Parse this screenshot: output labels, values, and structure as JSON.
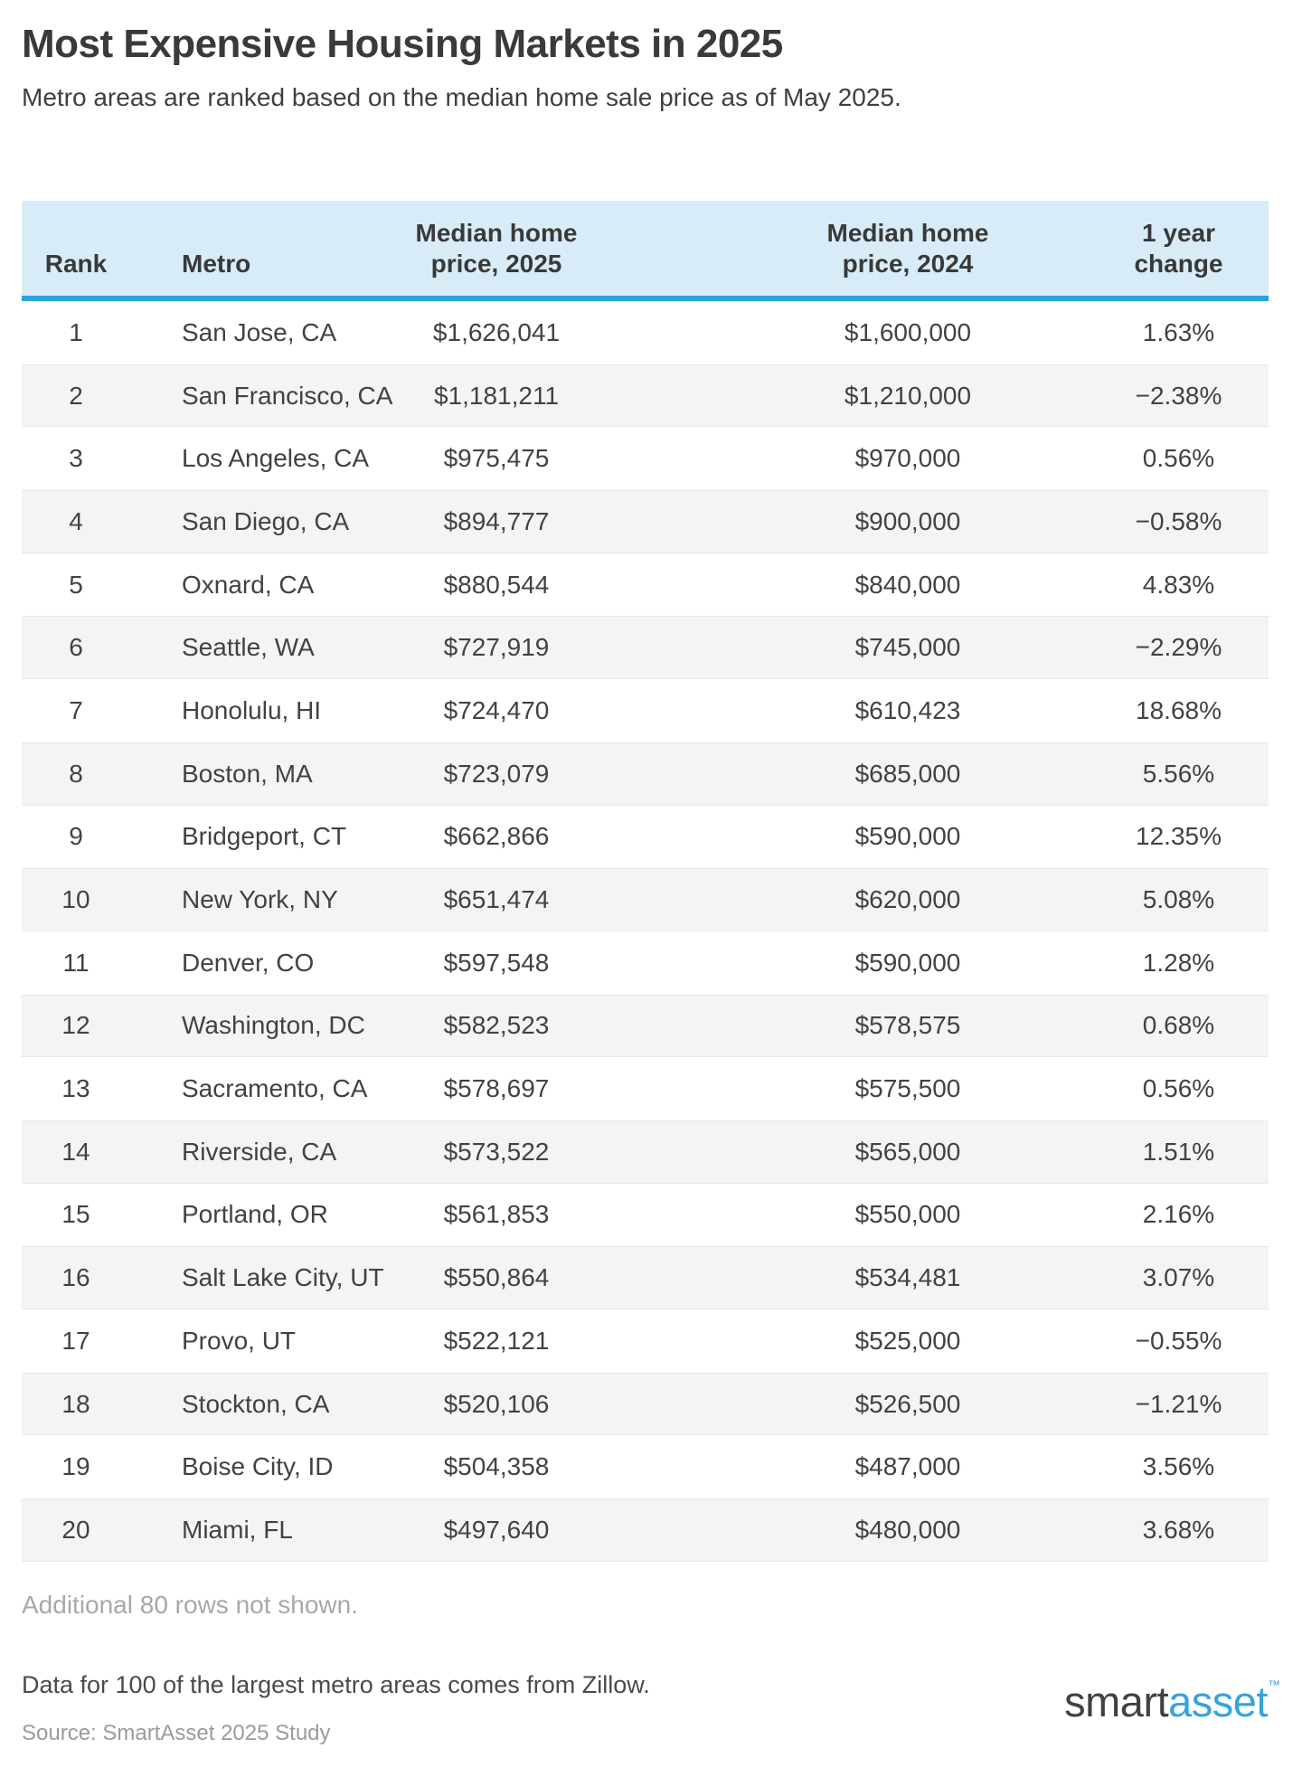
{
  "chart_data": {
    "type": "table",
    "title": "Most Expensive Housing Markets in 2025",
    "subtitle": "Metro areas are ranked based on the median home sale price as of May 2025.",
    "columns": [
      "Rank",
      "Metro",
      "Median home price, 2025",
      "Median home price, 2024",
      "1 year change"
    ],
    "rows": [
      {
        "rank": "1",
        "metro": "San Jose, CA",
        "price_2025": "$1,626,041",
        "price_2024": "$1,600,000",
        "change": "1.63%"
      },
      {
        "rank": "2",
        "metro": "San Francisco, CA",
        "price_2025": "$1,181,211",
        "price_2024": "$1,210,000",
        "change": "−2.38%"
      },
      {
        "rank": "3",
        "metro": "Los Angeles, CA",
        "price_2025": "$975,475",
        "price_2024": "$970,000",
        "change": "0.56%"
      },
      {
        "rank": "4",
        "metro": "San Diego, CA",
        "price_2025": "$894,777",
        "price_2024": "$900,000",
        "change": "−0.58%"
      },
      {
        "rank": "5",
        "metro": "Oxnard, CA",
        "price_2025": "$880,544",
        "price_2024": "$840,000",
        "change": "4.83%"
      },
      {
        "rank": "6",
        "metro": "Seattle, WA",
        "price_2025": "$727,919",
        "price_2024": "$745,000",
        "change": "−2.29%"
      },
      {
        "rank": "7",
        "metro": "Honolulu, HI",
        "price_2025": "$724,470",
        "price_2024": "$610,423",
        "change": "18.68%"
      },
      {
        "rank": "8",
        "metro": "Boston, MA",
        "price_2025": "$723,079",
        "price_2024": "$685,000",
        "change": "5.56%"
      },
      {
        "rank": "9",
        "metro": "Bridgeport, CT",
        "price_2025": "$662,866",
        "price_2024": "$590,000",
        "change": "12.35%"
      },
      {
        "rank": "10",
        "metro": "New York, NY",
        "price_2025": "$651,474",
        "price_2024": "$620,000",
        "change": "5.08%"
      },
      {
        "rank": "11",
        "metro": "Denver, CO",
        "price_2025": "$597,548",
        "price_2024": "$590,000",
        "change": "1.28%"
      },
      {
        "rank": "12",
        "metro": "Washington, DC",
        "price_2025": "$582,523",
        "price_2024": "$578,575",
        "change": "0.68%"
      },
      {
        "rank": "13",
        "metro": "Sacramento, CA",
        "price_2025": "$578,697",
        "price_2024": "$575,500",
        "change": "0.56%"
      },
      {
        "rank": "14",
        "metro": "Riverside, CA",
        "price_2025": "$573,522",
        "price_2024": "$565,000",
        "change": "1.51%"
      },
      {
        "rank": "15",
        "metro": "Portland, OR",
        "price_2025": "$561,853",
        "price_2024": "$550,000",
        "change": "2.16%"
      },
      {
        "rank": "16",
        "metro": "Salt Lake City, UT",
        "price_2025": "$550,864",
        "price_2024": "$534,481",
        "change": "3.07%"
      },
      {
        "rank": "17",
        "metro": "Provo, UT",
        "price_2025": "$522,121",
        "price_2024": "$525,000",
        "change": "−0.55%"
      },
      {
        "rank": "18",
        "metro": "Stockton, CA",
        "price_2025": "$520,106",
        "price_2024": "$526,500",
        "change": "−1.21%"
      },
      {
        "rank": "19",
        "metro": "Boise City, ID",
        "price_2025": "$504,358",
        "price_2024": "$487,000",
        "change": "3.56%"
      },
      {
        "rank": "20",
        "metro": "Miami, FL",
        "price_2025": "$497,640",
        "price_2024": "$480,000",
        "change": "3.68%"
      }
    ]
  },
  "note": "Additional 80 rows not shown.",
  "footer": {
    "data_note": "Data for 100 of the largest metro areas comes from Zillow.",
    "source": "Source: SmartAsset 2025 Study",
    "logo_smart": "smart",
    "logo_asset": "asset",
    "logo_tm": "™"
  },
  "colors": {
    "header_bg": "#d8ecf8",
    "header_border": "#2aa3df",
    "stripe": "#f4f4f4",
    "logo_blue": "#35a4dc"
  }
}
